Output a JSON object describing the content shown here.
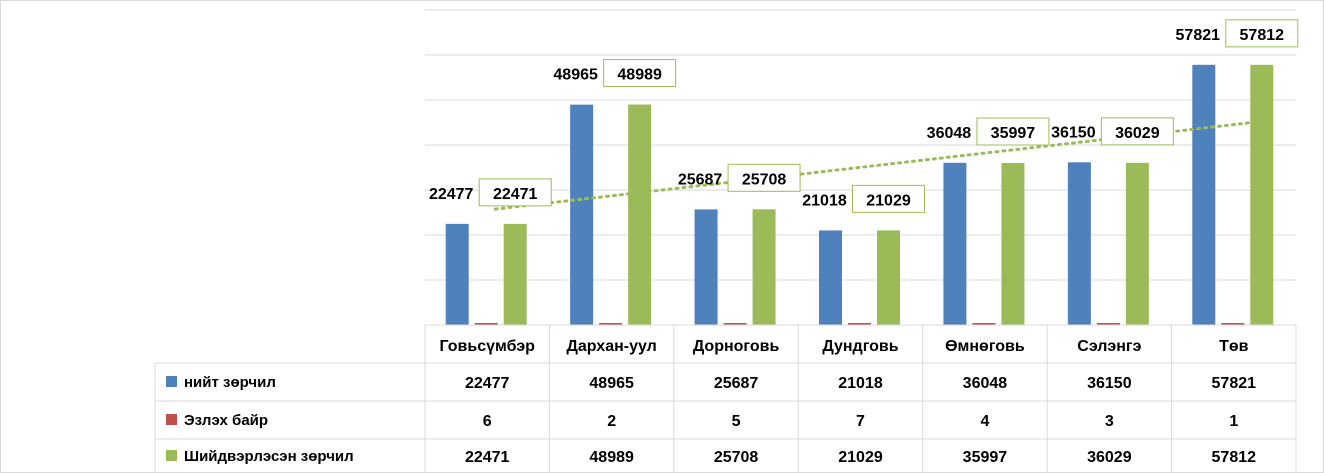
{
  "chart_data": {
    "type": "bar",
    "categories": [
      "Говьсүмбэр",
      "Дархан-уул",
      "Дорноговь",
      "Дундговь",
      "Өмнөговь",
      "Сэлэнгэ",
      "Төв"
    ],
    "series": [
      {
        "name": "нийт зөрчил",
        "values": [
          22477,
          48965,
          25687,
          21018,
          36048,
          36150,
          57821
        ],
        "color": "#4F81BD"
      },
      {
        "name": "Эзлэх байр",
        "values": [
          6,
          2,
          5,
          7,
          4,
          3,
          1
        ],
        "color": "#C0504D"
      },
      {
        "name": "Шийдвэрлэсэн зөрчил",
        "values": [
          22471,
          48989,
          25708,
          21029,
          35997,
          36029,
          57812
        ],
        "color": "#9BBB59"
      }
    ],
    "ylim": [
      0,
      70000
    ],
    "grid": true,
    "legend": "data-table",
    "trendline": {
      "series": "Шийдвэрлэсэн зөрчил",
      "style": "dotted",
      "color": "#9BBB59"
    }
  }
}
